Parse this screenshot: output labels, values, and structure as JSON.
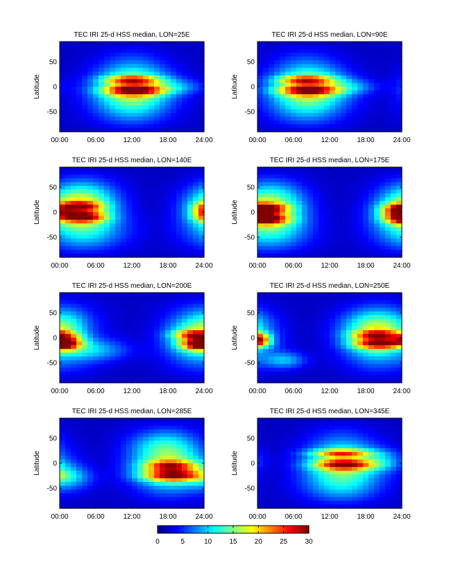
{
  "colormap": "jet",
  "chart_data": [
    {
      "type": "heatmap",
      "title": "TEC  IRI 25-d HSS median, LON=25E",
      "ylabel": "Latitude",
      "xlim": [
        0,
        24
      ],
      "ylim": [
        -90,
        90
      ],
      "xticks": [
        0,
        6,
        12,
        18,
        24
      ],
      "xticklabels": [
        "00:00",
        "06:00",
        "12:00",
        "18:00",
        "24:00"
      ],
      "yticks": [
        50,
        0,
        -50
      ],
      "yticklabels": [
        "50",
        "0",
        "-50"
      ],
      "colorlim": [
        0,
        30
      ],
      "blobs": [
        {
          "t": 12.5,
          "lat": -7,
          "st": 3.5,
          "slat": 7,
          "amp": 16
        },
        {
          "t": 12.0,
          "lat": 14,
          "st": 3.2,
          "slat": 5,
          "amp": 13
        },
        {
          "t": 12.5,
          "lat": 3,
          "st": 4.5,
          "slat": 24,
          "amp": 8
        },
        {
          "t": 20.0,
          "lat": 0,
          "st": 3.0,
          "slat": 10,
          "amp": 4
        },
        {
          "t": 12.0,
          "lat": -30,
          "st": 5.0,
          "slat": 30,
          "amp": 5
        }
      ],
      "background": [
        {
          "t": 12,
          "dur": 8,
          "amp": 6
        }
      ]
    },
    {
      "type": "heatmap",
      "title": "TEC  IRI 25-d HSS median, LON=90E",
      "ylabel": "Latitude",
      "xlim": [
        0,
        24
      ],
      "ylim": [
        -90,
        90
      ],
      "xticks": [
        0,
        6,
        12,
        18,
        24
      ],
      "xticklabels": [
        "00:00",
        "06:00",
        "12:00",
        "18:00",
        "24:00"
      ],
      "yticks": [
        50,
        0,
        -50
      ],
      "yticklabels": [
        "50",
        "0",
        "-50"
      ],
      "colorlim": [
        0,
        30
      ],
      "blobs": [
        {
          "t": 8.5,
          "lat": -7,
          "st": 3.5,
          "slat": 7,
          "amp": 15
        },
        {
          "t": 8.0,
          "lat": 14,
          "st": 3.2,
          "slat": 5,
          "amp": 13
        },
        {
          "t": 9.0,
          "lat": 3,
          "st": 4.5,
          "slat": 24,
          "amp": 8
        },
        {
          "t": 16.0,
          "lat": 0,
          "st": 3.0,
          "slat": 10,
          "amp": 4
        },
        {
          "t": 8.5,
          "lat": -30,
          "st": 5.0,
          "slat": 30,
          "amp": 5
        }
      ],
      "background": [
        {
          "t": 8,
          "dur": 8,
          "amp": 6
        }
      ]
    },
    {
      "type": "heatmap",
      "title": "TEC  IRI 25-d HSS median, LON=140E",
      "ylabel": "Latitude",
      "xlim": [
        0,
        24
      ],
      "ylim": [
        -90,
        90
      ],
      "xticks": [
        0,
        6,
        12,
        18,
        24
      ],
      "xticklabels": [
        "00:00",
        "06:00",
        "12:00",
        "18:00",
        "24:00"
      ],
      "yticks": [
        50,
        0,
        -50
      ],
      "yticklabels": [
        "50",
        "0",
        "-50"
      ],
      "colorlim": [
        0,
        30
      ],
      "blobs": [
        {
          "t": 4.0,
          "lat": -10,
          "st": 2.5,
          "slat": 7,
          "amp": 14
        },
        {
          "t": 3.5,
          "lat": 12,
          "st": 2.5,
          "slat": 6,
          "amp": 11
        },
        {
          "t": 3.0,
          "lat": 0,
          "st": 4.0,
          "slat": 22,
          "amp": 9
        },
        {
          "t": 24.0,
          "lat": 0,
          "st": 1.5,
          "slat": 12,
          "amp": 10
        },
        {
          "t": 3.0,
          "lat": 30,
          "st": 4.0,
          "slat": 20,
          "amp": 6
        },
        {
          "t": 4.0,
          "lat": -40,
          "st": 6.0,
          "slat": 25,
          "amp": 4
        }
      ],
      "background": [
        {
          "t": 4,
          "dur": 8,
          "amp": 7
        }
      ]
    },
    {
      "type": "heatmap",
      "title": "TEC  IRI 25-d HSS median, LON=175E",
      "ylabel": "Latitude",
      "xlim": [
        0,
        24
      ],
      "ylim": [
        -90,
        90
      ],
      "xticks": [
        0,
        6,
        12,
        18,
        24
      ],
      "xticklabels": [
        "00:00",
        "06:00",
        "12:00",
        "18:00",
        "24:00"
      ],
      "yticks": [
        50,
        0,
        -50
      ],
      "yticklabels": [
        "50",
        "0",
        "-50"
      ],
      "colorlim": [
        0,
        30
      ],
      "blobs": [
        {
          "t": 1.5,
          "lat": -14,
          "st": 2.5,
          "slat": 7,
          "amp": 15
        },
        {
          "t": 1.5,
          "lat": 8,
          "st": 2.5,
          "slat": 6,
          "amp": 12
        },
        {
          "t": 1.5,
          "lat": -2,
          "st": 4.0,
          "slat": 22,
          "amp": 9
        },
        {
          "t": 23.5,
          "lat": 0,
          "st": 2.0,
          "slat": 12,
          "amp": 12
        },
        {
          "t": 2.0,
          "lat": 30,
          "st": 4.0,
          "slat": 20,
          "amp": 5
        },
        {
          "t": 2.0,
          "lat": -40,
          "st": 5.0,
          "slat": 25,
          "amp": 5
        }
      ],
      "background": [
        {
          "t": 2,
          "dur": 8,
          "amp": 6
        }
      ]
    },
    {
      "type": "heatmap",
      "title": "TEC  IRI 25-d HSS median, LON=200E",
      "ylabel": "Latitude",
      "xlim": [
        0,
        24
      ],
      "ylim": [
        -90,
        90
      ],
      "xticks": [
        0,
        6,
        12,
        18,
        24
      ],
      "xticklabels": [
        "00:00",
        "06:00",
        "12:00",
        "18:00",
        "24:00"
      ],
      "yticks": [
        50,
        0,
        -50
      ],
      "yticklabels": [
        "50",
        "0",
        "-50"
      ],
      "colorlim": [
        0,
        30
      ],
      "blobs": [
        {
          "t": 1.0,
          "lat": -10,
          "st": 2.0,
          "slat": 10,
          "amp": 16
        },
        {
          "t": 23.0,
          "lat": -14,
          "st": 2.0,
          "slat": 7,
          "amp": 13
        },
        {
          "t": 22.5,
          "lat": 6,
          "st": 2.5,
          "slat": 6,
          "amp": 12
        },
        {
          "t": 22.0,
          "lat": 0,
          "st": 3.0,
          "slat": 25,
          "amp": 8
        },
        {
          "t": 6.0,
          "lat": -25,
          "st": 4.0,
          "slat": 15,
          "amp": 6
        },
        {
          "t": 1.0,
          "lat": 25,
          "st": 2.5,
          "slat": 20,
          "amp": 5
        }
      ],
      "background": [
        {
          "t": 0,
          "dur": 9,
          "amp": 6
        }
      ]
    },
    {
      "type": "heatmap",
      "title": "TEC  IRI 25-d HSS median, LON=250E",
      "ylabel": "Latitude",
      "xlim": [
        0,
        24
      ],
      "ylim": [
        -90,
        90
      ],
      "xticks": [
        0,
        6,
        12,
        18,
        24
      ],
      "xticklabels": [
        "00:00",
        "06:00",
        "12:00",
        "18:00",
        "24:00"
      ],
      "yticks": [
        50,
        0,
        -50
      ],
      "yticklabels": [
        "50",
        "0",
        "-50"
      ],
      "colorlim": [
        0,
        30
      ],
      "blobs": [
        {
          "t": 20.5,
          "lat": -12,
          "st": 3.0,
          "slat": 7,
          "amp": 16
        },
        {
          "t": 20.0,
          "lat": 6,
          "st": 3.0,
          "slat": 6,
          "amp": 12
        },
        {
          "t": 20.0,
          "lat": -2,
          "st": 4.0,
          "slat": 25,
          "amp": 9
        },
        {
          "t": 0.5,
          "lat": -4,
          "st": 1.2,
          "slat": 8,
          "amp": 14
        },
        {
          "t": 4.5,
          "lat": -45,
          "st": 2.5,
          "slat": 12,
          "amp": 7
        },
        {
          "t": 20.0,
          "lat": 30,
          "st": 4.0,
          "slat": 18,
          "amp": 5
        }
      ],
      "background": [
        {
          "t": 20,
          "dur": 8,
          "amp": 6
        }
      ]
    },
    {
      "type": "heatmap",
      "title": "TEC  IRI 25-d HSS median, LON=285E",
      "ylabel": "Latitude",
      "xlim": [
        0,
        24
      ],
      "ylim": [
        -90,
        90
      ],
      "xticks": [
        0,
        6,
        12,
        18,
        24
      ],
      "xticklabels": [
        "00:00",
        "06:00",
        "12:00",
        "18:00",
        "24:00"
      ],
      "yticks": [
        50,
        0,
        -50
      ],
      "yticklabels": [
        "50",
        "0",
        "-50"
      ],
      "colorlim": [
        0,
        30
      ],
      "blobs": [
        {
          "t": 19.0,
          "lat": -25,
          "st": 3.5,
          "slat": 8,
          "amp": 16
        },
        {
          "t": 18.5,
          "lat": -5,
          "st": 3.0,
          "slat": 7,
          "amp": 12
        },
        {
          "t": 18.5,
          "lat": -10,
          "st": 4.5,
          "slat": 25,
          "amp": 9
        },
        {
          "t": 1.5,
          "lat": -30,
          "st": 3.0,
          "slat": 18,
          "amp": 6
        },
        {
          "t": 17.0,
          "lat": 35,
          "st": 4.0,
          "slat": 20,
          "amp": 5
        }
      ],
      "background": [
        {
          "t": 18,
          "dur": 8,
          "amp": 6
        }
      ]
    },
    {
      "type": "heatmap",
      "title": "TEC  IRI 25-d HSS median, LON=345E",
      "ylabel": "Latitude",
      "xlim": [
        0,
        24
      ],
      "ylim": [
        -90,
        90
      ],
      "xticks": [
        0,
        6,
        12,
        18,
        24
      ],
      "xticklabels": [
        "00:00",
        "06:00",
        "12:00",
        "18:00",
        "24:00"
      ],
      "yticks": [
        50,
        0,
        -50
      ],
      "yticklabels": [
        "50",
        "0",
        "-50"
      ],
      "colorlim": [
        0,
        30
      ],
      "blobs": [
        {
          "t": 14.5,
          "lat": -3,
          "st": 3.5,
          "slat": 7,
          "amp": 15
        },
        {
          "t": 14.0,
          "lat": 20,
          "st": 3.5,
          "slat": 5,
          "amp": 12
        },
        {
          "t": 14.5,
          "lat": 5,
          "st": 4.5,
          "slat": 22,
          "amp": 8
        },
        {
          "t": 14.0,
          "lat": -40,
          "st": 5.0,
          "slat": 25,
          "amp": 5
        },
        {
          "t": 21.0,
          "lat": 5,
          "st": 2.5,
          "slat": 15,
          "amp": 4
        }
      ],
      "background": [
        {
          "t": 14,
          "dur": 8,
          "amp": 6
        }
      ]
    }
  ],
  "colorbar": {
    "min": 0,
    "max": 30,
    "ticks": [
      0,
      5,
      10,
      15,
      20,
      25,
      30
    ],
    "ticklabels": [
      "0",
      "5",
      "10",
      "15",
      "20",
      "25",
      "30"
    ]
  }
}
